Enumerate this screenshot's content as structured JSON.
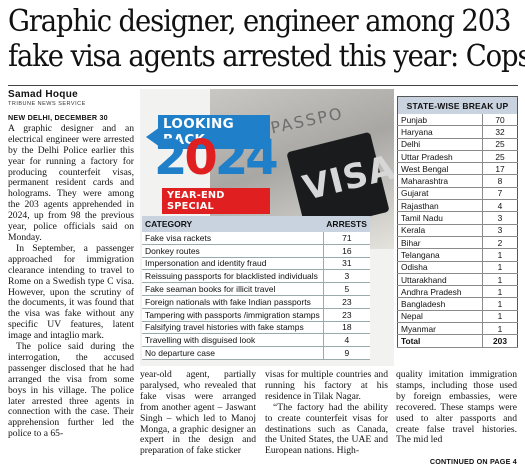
{
  "headline": {
    "line1": "Graphic designer, engineer among 203",
    "line2": "fake visa agents arrested this year: Cops"
  },
  "byline": {
    "author": "Samad Hoque",
    "service": "TRIBUNE NEWS SERVICE"
  },
  "article": {
    "dateline": "NEW DELHI, DECEMBER 30",
    "col1_p1": "A graphic designer and an electrical engineer were arrested by the Delhi Police earlier this year for running a factory for producing counterfeit visas, permanent resident cards and holograms. They were among the 203 agents apprehended in 2024, up from 98 the previous year, police officials said on Monday.",
    "col1_p2": "In September, a passenger approached for immigration clearance intending to travel to Rome on a Swedish type C visa. However, upon the scrutiny of the documents, it was found that the visa was fake without any specific UV features, latent image and intaglio mark.",
    "col1_p3": "The police said during the interrogation, the accused passenger disclosed that he had arranged the visa from some boys in his village. The police later arrested three agents in connection with the case. Their apprehension further led the police to a 65-",
    "col2": "year-old agent, partially paralysed, who revealed that fake visas were arranged from another agent – Jaswant Singh – which led to Manoj Monga, a graphic designer an expert in the design and preparation of fake sticker",
    "col3_p1": "visas for multiple countries and running his factory at his residence in Tilak Nagar.",
    "col3_p2": "“The factory had the ability to create counterfeit visas for destinations such as Canada, the United States, the UAE and European nations. High-",
    "col4": "quality imitation immigration stamps, including those used by foreign embassies, were recovered. These stamps were used to alter passports and create false travel histories. The mid led",
    "continued": "CONTINUED ON PAGE 4"
  },
  "graphic": {
    "looking_back": "LOOKING BACK",
    "year_digits": [
      "2",
      "0",
      "2",
      "4"
    ],
    "year_end": "YEAR-END SPECIAL",
    "passport_text": "PASSPO",
    "visa_stamp": "VISA"
  },
  "category_table": {
    "headers": [
      "CATEGORY",
      "ARRESTS"
    ],
    "rows": [
      [
        "Fake visa rackets",
        "71"
      ],
      [
        "Donkey routes",
        "16"
      ],
      [
        "Impersonation and identity fraud",
        "31"
      ],
      [
        "Reissuing passports for blacklisted individuals",
        "3"
      ],
      [
        "Fake seaman books for illicit travel",
        "5"
      ],
      [
        "Foreign nationals with fake Indian passports",
        "23"
      ],
      [
        "Tampering with passports /immigration stamps",
        "23"
      ],
      [
        "Falsifying travel histories with fake stamps",
        "18"
      ],
      [
        "Travelling with disguised look",
        "4"
      ],
      [
        "No departure case",
        "9"
      ]
    ]
  },
  "state_table": {
    "header": "STATE-WISE BREAK UP",
    "rows": [
      [
        "Punjab",
        "70"
      ],
      [
        "Haryana",
        "32"
      ],
      [
        "Delhi",
        "25"
      ],
      [
        "Uttar Pradesh",
        "25"
      ],
      [
        "West Bengal",
        "17"
      ],
      [
        "Maharashtra",
        "8"
      ],
      [
        "Gujarat",
        "7"
      ],
      [
        "Rajasthan",
        "4"
      ],
      [
        "Tamil Nadu",
        "3"
      ],
      [
        "Kerala",
        "3"
      ],
      [
        "Bihar",
        "2"
      ],
      [
        "Telangana",
        "1"
      ],
      [
        "Odisha",
        "1"
      ],
      [
        "Uttarakhand",
        "1"
      ],
      [
        "Andhra Pradesh",
        "1"
      ],
      [
        "Bangladesh",
        "1"
      ],
      [
        "Nepal",
        "1"
      ],
      [
        "Myanmar",
        "1"
      ]
    ],
    "total_label": "Total",
    "total_value": "203"
  }
}
